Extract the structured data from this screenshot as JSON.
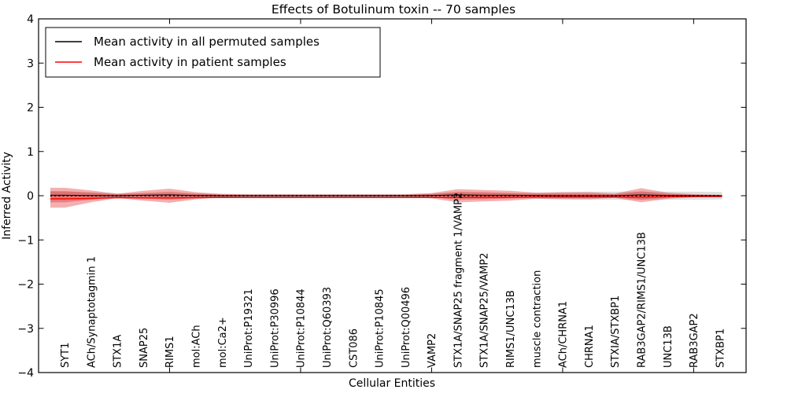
{
  "title": "Effects of Botulinum toxin -- 70 samples",
  "legend": {
    "position": "upper left",
    "entries": [
      {
        "label": "Mean activity in all permuted samples",
        "color": "#000000"
      },
      {
        "label": "Mean activity in patient samples",
        "color": "#ff0000"
      }
    ]
  },
  "chart_data": {
    "type": "line",
    "title": "Effects of Botulinum toxin -- 70 samples",
    "xlabel": "Cellular Entities",
    "ylabel": "Inferred Activity",
    "xlim": [
      0,
      27
    ],
    "ylim": [
      -4,
      4
    ],
    "grid": false,
    "xticks_shown_on_spines": [
      5,
      10,
      15,
      20,
      25
    ],
    "yticks": [
      4,
      3,
      2,
      1,
      0,
      -1,
      -2,
      -3,
      -4
    ],
    "ytick_labels": [
      "4",
      "3",
      "2",
      "1",
      "0",
      "−1",
      "−2",
      "−3",
      "−4"
    ],
    "categories": [
      "SYT1",
      "ACh/Synaptotagmin 1",
      "STX1A",
      "SNAP25",
      "RIMS1",
      "mol:ACh",
      "mol:Ca2+",
      "UniProt:P19321",
      "UniProt:P30996",
      "UniProt:P10844",
      "UniProt:Q60393",
      "CST086",
      "UniProt:P10845",
      "UniProt:Q00496",
      "VAMP2",
      "STX1A/SNAP25 fragment 1/VAMP2",
      "STX1A/SNAP25/VAMP2",
      "RIMS1/UNC13B",
      "muscle contraction",
      "ACh/CHRNA1",
      "CHRNA1",
      "STXIA/STXBP1",
      "RAB3GAP2/RIMS1/UNC13B",
      "UNC13B",
      "RAB3GAP2",
      "STXBP1"
    ],
    "category_x_positions_start_at": 1,
    "series": [
      {
        "name": "Mean activity in all permuted samples",
        "color": "#000000",
        "style": "solid",
        "values": [
          0.01,
          0.005,
          0,
          0.01,
          0.02,
          0.005,
          0,
          0,
          0,
          0,
          0,
          0,
          0,
          0,
          0.005,
          0.02,
          0.01,
          0.01,
          0.005,
          0,
          0,
          0,
          0.02,
          0.005,
          0,
          0
        ]
      },
      {
        "name": "Mean activity in patient samples",
        "color": "#ff0000",
        "style": "solid",
        "values": [
          -0.07,
          -0.06,
          -0.045,
          -0.05,
          -0.05,
          -0.045,
          -0.04,
          -0.04,
          -0.04,
          -0.04,
          -0.04,
          -0.04,
          -0.04,
          -0.04,
          -0.04,
          -0.04,
          -0.035,
          -0.035,
          -0.03,
          -0.03,
          -0.03,
          -0.03,
          -0.03,
          -0.025,
          -0.02,
          -0.02
        ]
      }
    ],
    "zero_reference_line": {
      "y": 0,
      "style": "dotted",
      "color": "#000000"
    },
    "bands": [
      {
        "name": "permuted-samples-range",
        "color": "rgba(0,0,0,0.13)",
        "upper": [
          0.1,
          0.08,
          0.055,
          0.05,
          0.05,
          0.045,
          0.04,
          0.04,
          0.04,
          0.04,
          0.04,
          0.04,
          0.04,
          0.04,
          0.05,
          0.06,
          0.06,
          0.06,
          0.07,
          0.08,
          0.09,
          0.09,
          0.09,
          0.09,
          0.09,
          0.085
        ],
        "lower": [
          -0.1,
          -0.08,
          -0.055,
          -0.05,
          -0.05,
          -0.045,
          -0.04,
          -0.04,
          -0.04,
          -0.04,
          -0.04,
          -0.04,
          -0.04,
          -0.04,
          -0.05,
          -0.06,
          -0.06,
          -0.06,
          -0.07,
          -0.08,
          -0.09,
          -0.09,
          -0.09,
          -0.09,
          -0.09,
          -0.085
        ]
      },
      {
        "name": "patient-samples-outer-range",
        "color": "rgba(227,66,66,0.42)",
        "upper": [
          0.18,
          0.12,
          0.045,
          0.11,
          0.16,
          0.08,
          0.04,
          0.03,
          0.03,
          0.03,
          0.03,
          0.03,
          0.03,
          0.03,
          0.06,
          0.15,
          0.13,
          0.11,
          0.07,
          0.08,
          0.08,
          0.05,
          0.17,
          0.07,
          0.035,
          0.02
        ],
        "lower": [
          -0.27,
          -0.15,
          -0.05,
          -0.11,
          -0.16,
          -0.08,
          -0.04,
          -0.03,
          -0.03,
          -0.03,
          -0.03,
          -0.03,
          -0.03,
          -0.03,
          -0.06,
          -0.15,
          -0.13,
          -0.11,
          -0.07,
          -0.08,
          -0.08,
          -0.05,
          -0.15,
          -0.07,
          -0.035,
          -0.02
        ]
      },
      {
        "name": "patient-samples-inner-range",
        "color": "rgba(219,48,48,0.38)",
        "upper": [
          0.1,
          0.07,
          0.03,
          0.06,
          0.09,
          0.05,
          0.025,
          0.018,
          0.018,
          0.018,
          0.018,
          0.018,
          0.018,
          0.018,
          0.035,
          0.09,
          0.08,
          0.06,
          0.04,
          0.045,
          0.045,
          0.03,
          0.1,
          0.04,
          0.02,
          0.012
        ],
        "lower": [
          -0.15,
          -0.09,
          -0.03,
          -0.06,
          -0.09,
          -0.05,
          -0.025,
          -0.018,
          -0.018,
          -0.018,
          -0.018,
          -0.018,
          -0.018,
          -0.018,
          -0.035,
          -0.09,
          -0.08,
          -0.06,
          -0.04,
          -0.045,
          -0.045,
          -0.03,
          -0.09,
          -0.04,
          -0.02,
          -0.012
        ]
      }
    ],
    "legend_position": "upper left"
  }
}
